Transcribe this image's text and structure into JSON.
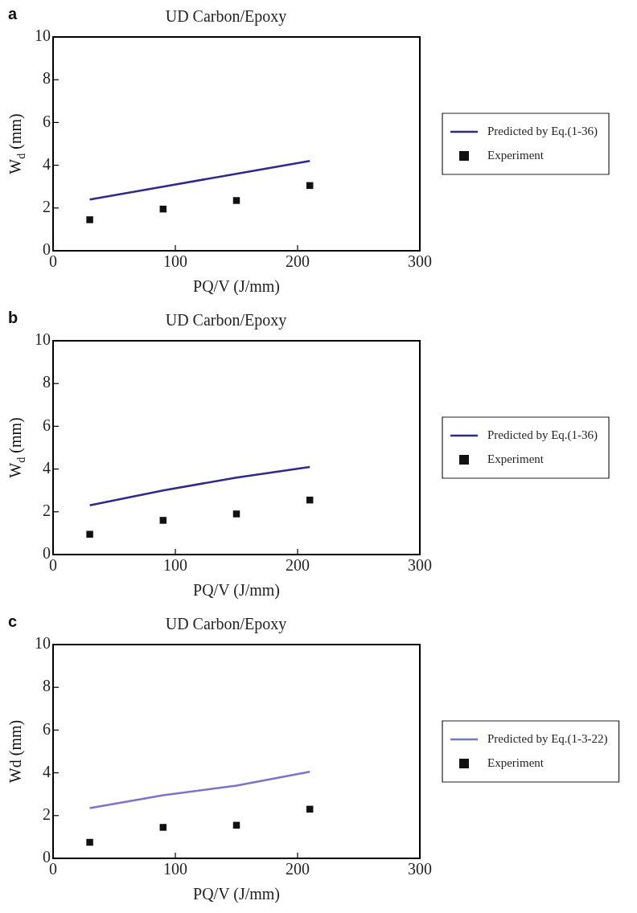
{
  "chart_data": [
    {
      "type": "line",
      "title": "UD Carbon/Epoxy",
      "xlabel": "PQ/V (J/mm)",
      "ylabel": "W$_{d}$ (mm)",
      "annotations": [
        "a"
      ],
      "xlim": [
        0,
        300
      ],
      "xticks": [
        0,
        100,
        200,
        300
      ],
      "ylim": [
        0,
        10
      ],
      "yticks": [
        0,
        2,
        4,
        6,
        8,
        10
      ],
      "legend": "right",
      "series": [
        {
          "name": "Predicted by Eq.(1-36)",
          "type": "line",
          "color": "#2e2a8a",
          "marker": "none",
          "x": [
            30,
            90,
            150,
            210
          ],
          "values": [
            2.4,
            3.0,
            3.6,
            4.2
          ]
        },
        {
          "name": "Experiment",
          "type": "scatter",
          "color": "#111111",
          "marker": "square",
          "x": [
            30,
            90,
            150,
            210
          ],
          "values": [
            1.45,
            1.95,
            2.35,
            3.05
          ]
        }
      ]
    },
    {
      "type": "line",
      "title": "UD Carbon/Epoxy",
      "xlabel": "PQ/V (J/mm)",
      "ylabel": "W$_{d}$ (mm)",
      "annotations": [
        "b"
      ],
      "xlim": [
        0,
        300
      ],
      "xticks": [
        0,
        100,
        200,
        300
      ],
      "ylim": [
        0,
        10
      ],
      "yticks": [
        0,
        2,
        4,
        6,
        8,
        10
      ],
      "legend": "right",
      "series": [
        {
          "name": "Predicted by Eq.(1-36)",
          "type": "line",
          "color": "#2e2a8a",
          "marker": "none",
          "x": [
            30,
            90,
            150,
            210
          ],
          "values": [
            2.3,
            3.0,
            3.6,
            4.1
          ]
        },
        {
          "name": "Experiment",
          "type": "scatter",
          "color": "#111111",
          "marker": "square",
          "x": [
            30,
            90,
            150,
            210
          ],
          "values": [
            0.95,
            1.6,
            1.9,
            2.55
          ]
        }
      ]
    },
    {
      "type": "line",
      "title": "UD Carbon/Epoxy",
      "xlabel": "PQ/V (J/mm)",
      "ylabel": "Wd (mm)",
      "annotations": [
        "c"
      ],
      "xlim": [
        0,
        300
      ],
      "xticks": [
        0,
        100,
        200,
        300
      ],
      "ylim": [
        0,
        10
      ],
      "yticks": [
        0,
        2,
        4,
        6,
        8,
        10
      ],
      "legend": "right",
      "series": [
        {
          "name": "Predicted by Eq.(1-3-22)",
          "type": "line",
          "color": "#7b74c8",
          "marker": "none",
          "x": [
            30,
            90,
            150,
            210
          ],
          "values": [
            2.35,
            2.95,
            3.4,
            4.05
          ]
        },
        {
          "name": "Experiment",
          "type": "scatter",
          "color": "#111111",
          "marker": "square",
          "x": [
            30,
            90,
            150,
            210
          ],
          "values": [
            0.75,
            1.45,
            1.55,
            2.3
          ]
        }
      ]
    }
  ]
}
